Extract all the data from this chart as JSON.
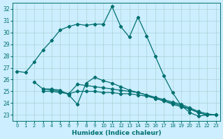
{
  "xlabel": "Humidex (Indice chaleur)",
  "bg_color": "#cceeff",
  "line_color": "#007070",
  "grid_color": "#aad4d4",
  "xlim": [
    -0.5,
    23.5
  ],
  "ylim": [
    22.5,
    32.5
  ],
  "yticks": [
    23,
    24,
    25,
    26,
    27,
    28,
    29,
    30,
    31,
    32
  ],
  "xticks": [
    0,
    1,
    2,
    3,
    4,
    5,
    6,
    7,
    8,
    9,
    10,
    11,
    12,
    13,
    14,
    15,
    16,
    17,
    18,
    19,
    20,
    21,
    22,
    23
  ],
  "series_main": {
    "x": [
      0,
      1,
      2,
      3,
      4,
      5,
      6,
      7,
      8,
      9,
      10,
      11,
      12,
      13,
      14,
      15,
      16,
      17,
      18,
      19,
      20,
      21,
      22
    ],
    "y": [
      26.7,
      26.6,
      27.5,
      28.5,
      29.3,
      30.2,
      30.5,
      30.7,
      30.6,
      30.7,
      30.7,
      32.2,
      30.5,
      29.6,
      31.3,
      29.7,
      28.0,
      26.3,
      24.9,
      23.8,
      23.2,
      22.9,
      23.0
    ]
  },
  "series_flat": [
    {
      "x": [
        2,
        3,
        4,
        5,
        6,
        7,
        8,
        9,
        10,
        11,
        12,
        13,
        14,
        15,
        16,
        17,
        18,
        19,
        20,
        21,
        22,
        23
      ],
      "y": [
        25.8,
        25.2,
        25.2,
        25.1,
        24.7,
        23.9,
        25.7,
        26.2,
        25.9,
        25.7,
        25.4,
        25.1,
        24.9,
        24.7,
        24.4,
        24.2,
        23.9,
        23.7,
        23.5,
        23.2,
        23.0,
        23.0
      ]
    },
    {
      "x": [
        3,
        4,
        5,
        6,
        7,
        8,
        9,
        10,
        11,
        12,
        13,
        14,
        15,
        16,
        17,
        18,
        19,
        20,
        21,
        22,
        23
      ],
      "y": [
        25.2,
        25.1,
        25.0,
        24.8,
        25.6,
        25.5,
        25.4,
        25.3,
        25.2,
        25.1,
        25.0,
        24.9,
        24.7,
        24.5,
        24.3,
        24.1,
        23.9,
        23.6,
        23.3,
        23.1,
        23.0
      ]
    },
    {
      "x": [
        3,
        4,
        5,
        6,
        7,
        8,
        9,
        10,
        11,
        12,
        13,
        14,
        15,
        16,
        17,
        18,
        19,
        20,
        21,
        22,
        23
      ],
      "y": [
        25.0,
        25.0,
        24.9,
        24.8,
        25.0,
        25.0,
        25.0,
        24.9,
        24.9,
        24.8,
        24.8,
        24.7,
        24.6,
        24.4,
        24.2,
        24.0,
        23.8,
        23.5,
        23.2,
        23.0,
        23.0
      ]
    }
  ]
}
